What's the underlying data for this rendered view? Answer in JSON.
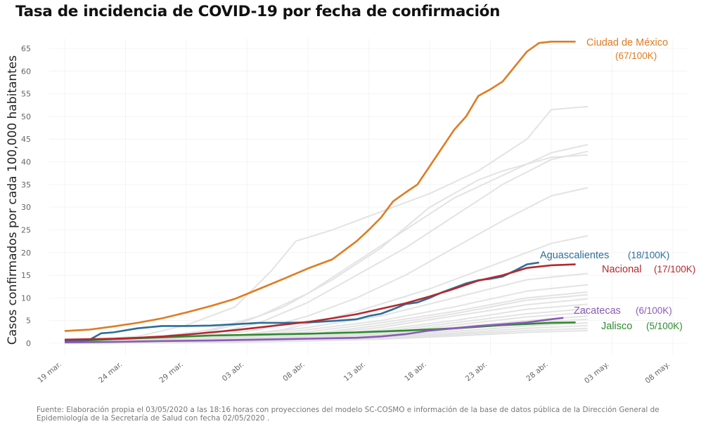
{
  "chart_data": {
    "type": "line",
    "title": "Tasa de incidencia de COVID-19 por fecha de confirmación",
    "xlabel": "",
    "ylabel": "Casos confirmados por cada 100,000 habitantes",
    "ylim": [
      0,
      65
    ],
    "yticks": [
      0,
      5,
      10,
      15,
      20,
      25,
      30,
      35,
      40,
      45,
      50,
      55,
      60,
      65
    ],
    "x_start_date": "19 mar.",
    "x_range_days": [
      0,
      50
    ],
    "xticks": [
      {
        "day": 0,
        "label": "19 mar."
      },
      {
        "day": 5,
        "label": "24 mar."
      },
      {
        "day": 10,
        "label": "29 mar."
      },
      {
        "day": 15,
        "label": "03 abr."
      },
      {
        "day": 20,
        "label": "08 abr."
      },
      {
        "day": 25,
        "label": "13 abr."
      },
      {
        "day": 30,
        "label": "18 abr."
      },
      {
        "day": 35,
        "label": "23 abr."
      },
      {
        "day": 40,
        "label": "28 abr."
      },
      {
        "day": 45,
        "label": "03 may."
      },
      {
        "day": 50,
        "label": "08 may."
      }
    ],
    "grid": true,
    "highlighted_series": [
      {
        "name": "Ciudad de México",
        "value_label": "(67/100K)",
        "color": "#e07b22",
        "x": [
          0,
          2,
          4,
          6,
          8,
          10,
          12,
          14,
          16,
          18,
          20,
          22,
          24,
          25,
          26,
          27,
          28,
          29,
          30,
          31,
          32,
          33,
          34,
          35,
          36,
          37,
          38,
          39,
          40,
          41,
          42
        ],
        "values": [
          2.7,
          3.0,
          3.7,
          4.5,
          5.5,
          6.8,
          8.2,
          9.8,
          12.0,
          14.2,
          16.5,
          18.5,
          22.5,
          25.0,
          27.7,
          31.3,
          33.2,
          35.0,
          39.0,
          43.0,
          47.0,
          50.0,
          54.5,
          56.0,
          57.7,
          61.0,
          64.3,
          66.2,
          66.5,
          66.5,
          66.5
        ]
      },
      {
        "name": "Aguascalientes",
        "value_label": "(18/100K)",
        "color": "#2b6e9a",
        "x": [
          0,
          2,
          3,
          4,
          6,
          8,
          10,
          12,
          14,
          16,
          18,
          20,
          22,
          24,
          25,
          26,
          27,
          28,
          29,
          30,
          31,
          32,
          33,
          34,
          35,
          36,
          37,
          38,
          39
        ],
        "values": [
          0.6,
          0.7,
          2.2,
          2.4,
          3.3,
          3.8,
          3.8,
          3.9,
          4.2,
          4.5,
          4.5,
          4.6,
          4.9,
          5.3,
          6.0,
          6.5,
          7.5,
          8.6,
          9.0,
          10.0,
          11.2,
          12.2,
          13.2,
          13.9,
          14.2,
          14.7,
          16.0,
          17.4,
          17.8
        ]
      },
      {
        "name": "Nacional",
        "value_label": "(17/100K)",
        "color": "#b5282d",
        "x": [
          0,
          2,
          4,
          6,
          8,
          10,
          12,
          14,
          16,
          18,
          20,
          22,
          24,
          26,
          28,
          30,
          32,
          34,
          36,
          38,
          40,
          42
        ],
        "values": [
          0.8,
          0.9,
          1.0,
          1.2,
          1.5,
          1.9,
          2.4,
          2.9,
          3.5,
          4.1,
          4.7,
          5.5,
          6.4,
          7.6,
          8.8,
          10.3,
          12.0,
          13.8,
          15.0,
          16.6,
          17.2,
          17.4
        ]
      },
      {
        "name": "Zacatecas",
        "value_label": "(6/100K)",
        "color": "#8a5bb8",
        "x": [
          0,
          4,
          8,
          12,
          16,
          20,
          24,
          26,
          28,
          30,
          32,
          34,
          36,
          38,
          40,
          41
        ],
        "values": [
          0.2,
          0.3,
          0.5,
          0.6,
          0.8,
          1.0,
          1.2,
          1.5,
          2.0,
          2.8,
          3.3,
          3.8,
          4.2,
          4.6,
          5.3,
          5.6
        ]
      },
      {
        "name": "Jalisco",
        "value_label": "(5/100K)",
        "color": "#2e8b2e",
        "x": [
          0,
          4,
          8,
          12,
          16,
          20,
          24,
          28,
          32,
          36,
          40,
          42
        ],
        "values": [
          0.4,
          0.9,
          1.3,
          1.7,
          1.9,
          2.1,
          2.4,
          2.8,
          3.3,
          4.0,
          4.5,
          4.6
        ]
      }
    ],
    "background_series_color": "#e3e3e3",
    "background_series": [
      {
        "x": [
          0,
          6,
          10,
          14,
          17,
          19,
          22,
          26,
          30,
          34,
          38,
          40,
          43
        ],
        "values": [
          0.5,
          1.5,
          4,
          8,
          16,
          22.5,
          25,
          29,
          33,
          38,
          45,
          51.5,
          52.2
        ]
      },
      {
        "x": [
          0,
          8,
          12,
          16,
          20,
          24,
          28,
          32,
          36,
          40,
          43
        ],
        "values": [
          0.5,
          1.5,
          3,
          6,
          11,
          18,
          25,
          32,
          37,
          42,
          43.8
        ]
      },
      {
        "x": [
          0,
          8,
          12,
          16,
          20,
          24,
          28,
          32,
          36,
          40,
          43
        ],
        "values": [
          0.3,
          1.0,
          2.0,
          4.5,
          9,
          15,
          21,
          28,
          35,
          40.5,
          42.3
        ]
      },
      {
        "x": [
          0,
          10,
          14,
          18,
          22,
          26,
          30,
          34,
          36,
          40,
          43
        ],
        "values": [
          0.3,
          1.5,
          4,
          8,
          14,
          21,
          30,
          36,
          38,
          41,
          41.5
        ]
      },
      {
        "x": [
          0,
          10,
          16,
          20,
          24,
          28,
          32,
          36,
          40,
          43
        ],
        "values": [
          0.2,
          1,
          3,
          6,
          10,
          15,
          21,
          27,
          32.5,
          34.3
        ]
      },
      {
        "x": [
          0,
          12,
          18,
          24,
          30,
          36,
          40,
          43
        ],
        "values": [
          0.2,
          1,
          3,
          7,
          12,
          18,
          22,
          23.7
        ]
      },
      {
        "x": [
          0,
          14,
          20,
          26,
          32,
          38,
          43
        ],
        "values": [
          0.2,
          1.5,
          3.5,
          6,
          10,
          14,
          15.4
        ]
      },
      {
        "x": [
          0,
          14,
          20,
          26,
          32,
          38,
          43
        ],
        "values": [
          0.2,
          1.2,
          3,
          5,
          8,
          11.5,
          12.9
        ]
      },
      {
        "x": [
          0,
          14,
          20,
          26,
          32,
          38,
          43
        ],
        "values": [
          0.2,
          1.0,
          2.5,
          4.5,
          7,
          10,
          11.3
        ]
      },
      {
        "x": [
          0,
          14,
          20,
          26,
          32,
          38,
          43
        ],
        "values": [
          0.1,
          0.8,
          2,
          4,
          6.5,
          9.5,
          10.7
        ]
      },
      {
        "x": [
          0,
          14,
          20,
          26,
          32,
          38,
          43
        ],
        "values": [
          0.1,
          0.7,
          1.8,
          3.5,
          6,
          8.5,
          9.8
        ]
      },
      {
        "x": [
          0,
          14,
          20,
          26,
          32,
          38,
          43
        ],
        "values": [
          0.1,
          0.6,
          1.5,
          3,
          5,
          7.5,
          8.6
        ]
      },
      {
        "x": [
          0,
          14,
          20,
          26,
          32,
          38,
          43
        ],
        "values": [
          0.1,
          0.5,
          1.3,
          2.6,
          4.5,
          6.5,
          7.6
        ]
      },
      {
        "x": [
          0,
          14,
          20,
          26,
          32,
          38,
          43
        ],
        "values": [
          0.1,
          0.5,
          1.2,
          2.3,
          4,
          5.8,
          6.8
        ]
      },
      {
        "x": [
          0,
          14,
          20,
          26,
          32,
          38,
          43
        ],
        "values": [
          0.1,
          0.4,
          1.0,
          2,
          3.5,
          5,
          6.0
        ]
      },
      {
        "x": [
          0,
          14,
          20,
          26,
          32,
          38,
          43
        ],
        "values": [
          0.1,
          0.4,
          0.9,
          1.8,
          3,
          4.5,
          5.3
        ]
      },
      {
        "x": [
          0,
          14,
          20,
          26,
          32,
          38,
          43
        ],
        "values": [
          0.1,
          0.3,
          0.8,
          1.5,
          2.6,
          3.8,
          4.5
        ]
      },
      {
        "x": [
          0,
          14,
          20,
          26,
          32,
          38,
          43
        ],
        "values": [
          0.1,
          0.3,
          0.7,
          1.3,
          2.2,
          3.3,
          3.9
        ]
      },
      {
        "x": [
          0,
          14,
          20,
          26,
          32,
          38,
          43
        ],
        "values": [
          0.0,
          0.2,
          0.6,
          1.1,
          1.9,
          2.8,
          3.3
        ]
      },
      {
        "x": [
          0,
          14,
          20,
          26,
          32,
          38,
          43
        ],
        "values": [
          0.0,
          0.2,
          0.5,
          0.9,
          1.6,
          2.4,
          2.8
        ]
      }
    ]
  },
  "footer": {
    "line1": "Fuente: Elaboración propia el 03/05/2020 a las 18:16 horas con proyecciones del modelo SC-COSMO e información de la base de datos pública de la Dirección General de",
    "line2": "Epidemiología de la Secretaría de Salud con fecha 02/05/2020 ."
  }
}
